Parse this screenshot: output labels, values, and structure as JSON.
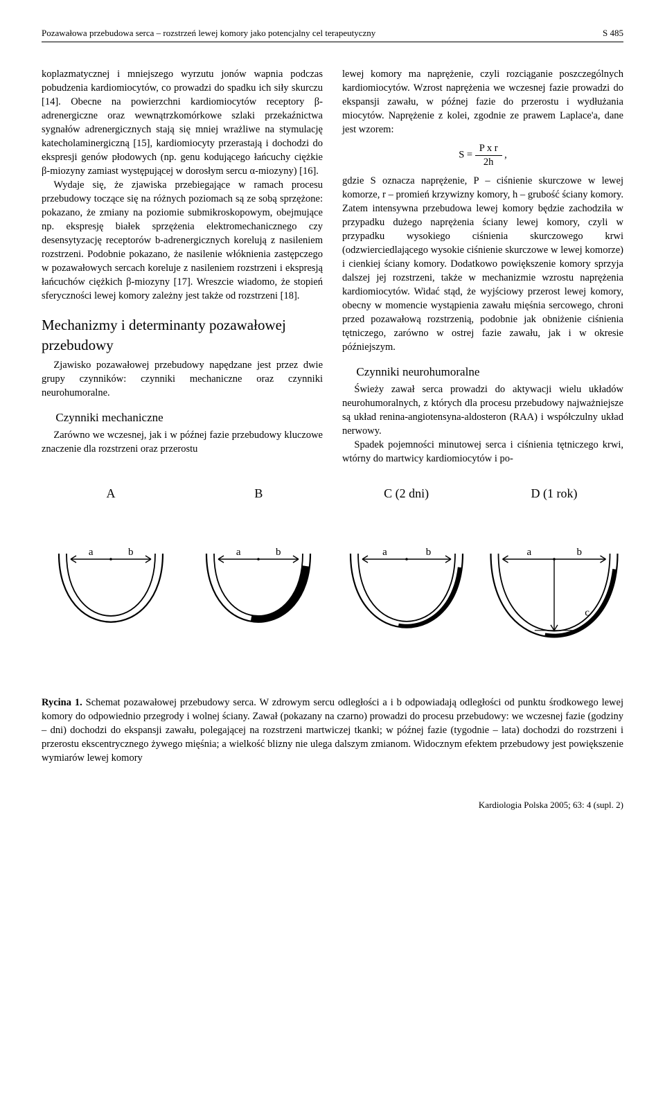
{
  "header": {
    "running_title": "Pozawałowa przebudowa serca – rozstrzeń lewej komory jako potencjalny cel terapeutyczny",
    "page_number": "S 485"
  },
  "left_column": {
    "p1": "koplazmatycznej i mniejszego wyrzutu jonów wapnia podczas pobudzenia kardiomiocytów, co prowadzi do spadku ich siły skurczu [14]. Obecne na powierzchni kardiomiocytów receptory β-adrenergiczne oraz wewnątrzkomórkowe szlaki przekaźnictwa sygnałów adrenergicznych stają się mniej wrażliwe na stymulację katecholaminergiczną [15], kardiomiocyty przerastają i dochodzi do ekspresji genów płodowych (np. genu kodującego łańcuchy ciężkie β-miozyny zamiast występującej w dorosłym sercu α-miozyny) [16].",
    "p2": "Wydaje się, że zjawiska przebiegające w ramach procesu przebudowy toczące się na różnych poziomach są ze sobą sprzężone: pokazano, że zmiany na poziomie submikroskopowym, obejmujące np. ekspresję białek sprzężenia elektromechanicznego czy desensytyzację receptorów b-adrenergicznych korelują z nasileniem rozstrzeni. Podobnie pokazano, że nasilenie włóknienia zastępczego w pozawałowych sercach koreluje z nasileniem rozstrzeni i ekspresją łańcuchów ciężkich β-miozyny [17]. Wreszcie wiadomo, że stopień sferyczności lewej komory zależny jest także od rozstrzeni [18].",
    "h2": "Mechanizmy i determinanty pozawałowej przebudowy",
    "p3": "Zjawisko pozawałowej przebudowy napędzane jest przez dwie grupy czynników: czynniki mechaniczne oraz czynniki neurohumoralne.",
    "h3a": "Czynniki mechaniczne",
    "p4": "Zarówno we wczesnej, jak i w późnej fazie przebudowy kluczowe znaczenie dla rozstrzeni oraz przerostu"
  },
  "right_column": {
    "p1": "lewej komory ma naprężenie, czyli rozciąganie poszczególnych kardiomiocytów. Wzrost naprężenia we wczesnej fazie prowadzi do ekspansji zawału, w późnej fazie do przerostu i wydłużania miocytów. Naprężenie z kolei, zgodnie ze prawem Laplace'a, dane jest wzorem:",
    "formula_prefix": "S =",
    "formula_num": "P x r",
    "formula_den": "2h",
    "formula_suffix": ",",
    "p2": "gdzie S oznacza naprężenie, P – ciśnienie skurczowe w lewej komorze, r – promień krzywizny komory, h – grubość ściany komory. Zatem intensywna przebudowa lewej komory będzie zachodziła w przypadku dużego naprężenia ściany lewej komory, czyli w przypadku wysokiego ciśnienia skurczowego krwi (odzwierciedlającego wysokie ciśnienie skurczowe w lewej komorze) i cienkiej ściany komory. Dodatkowo powiększenie komory sprzyja dalszej jej rozstrzeni, także w mechanizmie wzrostu naprężenia kardiomiocytów. Widać stąd, że wyjściowy przerost lewej komory, obecny w momencie wystąpienia zawału mięśnia sercowego, chroni przed pozawałową rozstrzenią, podobnie jak obniżenie ciśnienia tętniczego, zarówno w ostrej fazie zawału, jak i w okresie późniejszym.",
    "h3b": "Czynniki neurohumoralne",
    "p3": "Świeży zawał serca prowadzi do aktywacji wielu układów neurohumoralnych, z których dla procesu przebudowy najważniejsze są układ renina-angiotensyna-aldosteron (RAA) i współczulny układ nerwowy.",
    "p4": "Spadek pojemności minutowej serca i ciśnienia tętniczego krwi, wtórny do martwicy kardiomiocytów i po-"
  },
  "figure": {
    "type": "diagram",
    "panels": [
      {
        "label": "A",
        "a": "a",
        "b": "b",
        "scale": 1.0,
        "infarct": false,
        "c_label": null
      },
      {
        "label": "B",
        "a": "a",
        "b": "b",
        "scale": 1.0,
        "infarct": true,
        "infarct_thin": false,
        "c_label": null
      },
      {
        "label": "C (2 dni)",
        "a": "a",
        "b": "b",
        "scale": 1.08,
        "infarct": true,
        "infarct_thin": true,
        "c_label": null
      },
      {
        "label": "D (1 rok)",
        "a": "a",
        "b": "b",
        "scale": 1.22,
        "infarct": true,
        "infarct_thin": true,
        "c_label": "c"
      }
    ],
    "stroke_color": "#000000",
    "fill_color": "#000000",
    "background_color": "#ffffff",
    "caption_label": "Rycina 1.",
    "caption_text": " Schemat pozawałowej przebudowy serca. W zdrowym sercu odległości a i b odpowiadają odległości od punktu środkowego lewej komory do odpowiednio przegrody i wolnej ściany. Zawał (pokazany na czarno) prowadzi do procesu przebudowy: we wczesnej fazie (godziny – dni) dochodzi do ekspansji zawału, polegającej na rozstrzeni martwiczej tkanki; w późnej fazie (tygodnie – lata) dochodzi do rozstrzeni i przerostu ekscentrycznego żywego mięśnia; a wielkość blizny nie ulega dalszym zmianom. Widocznym efektem przebudowy jest powiększenie wymiarów lewej komory"
  },
  "footer": {
    "journal": "Kardiologia Polska 2005; 63: 4 (supl. 2)"
  }
}
